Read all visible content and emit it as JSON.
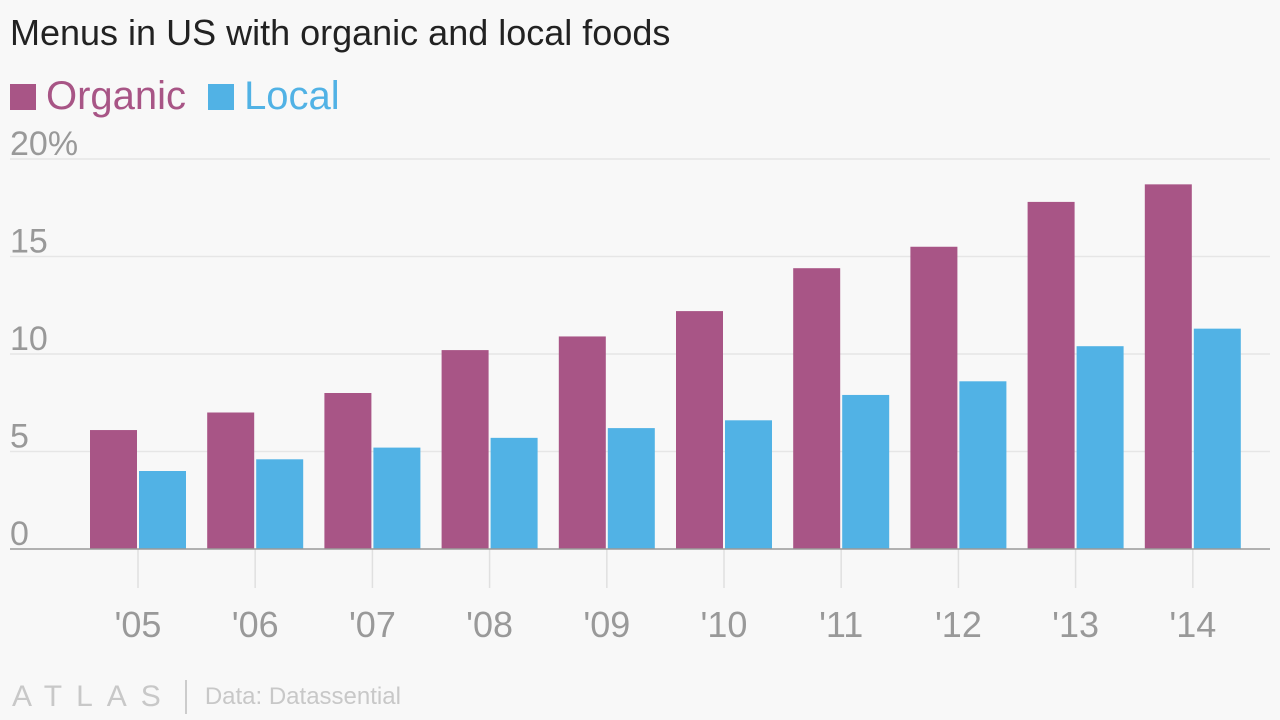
{
  "chart_data": {
    "type": "bar",
    "title": "Menus in US with organic and local foods",
    "categories": [
      "'05",
      "'06",
      "'07",
      "'08",
      "'09",
      "'10",
      "'11",
      "'12",
      "'13",
      "'14"
    ],
    "series": [
      {
        "name": "Organic",
        "color": "#a85586",
        "values": [
          6.1,
          7.0,
          8.0,
          10.2,
          10.9,
          12.2,
          14.4,
          15.5,
          17.8,
          18.7
        ]
      },
      {
        "name": "Local",
        "color": "#51b2e5",
        "values": [
          4.0,
          4.6,
          5.2,
          5.7,
          6.2,
          6.6,
          7.9,
          8.6,
          10.4,
          11.3
        ]
      }
    ],
    "y_ticks": [
      "0",
      "5",
      "10",
      "15",
      "20%"
    ],
    "y_tick_values": [
      0,
      5,
      10,
      15,
      20
    ],
    "ylim": [
      0,
      20
    ],
    "grid": true,
    "legend": "top-left",
    "xlabel": "",
    "ylabel": ""
  },
  "footer": {
    "logo": "ATLAS",
    "source": "Data: Datassential"
  }
}
